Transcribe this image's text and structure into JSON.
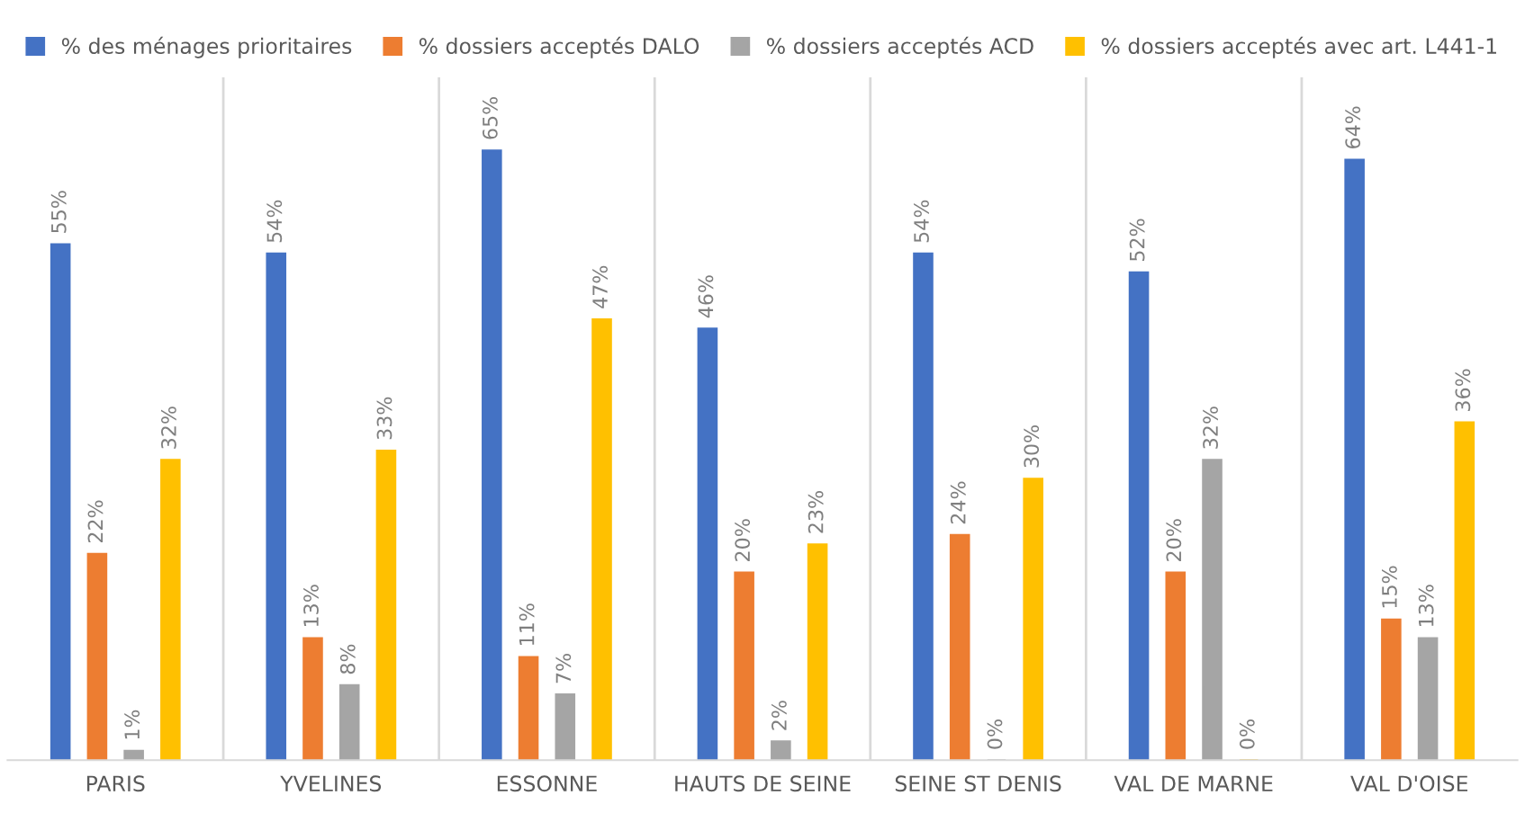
{
  "chart_data": {
    "type": "bar",
    "categories": [
      "PARIS",
      "YVELINES",
      "ESSONNE",
      "HAUTS DE SEINE",
      "SEINE ST DENIS",
      "VAL DE MARNE",
      "VAL D'OISE"
    ],
    "series": [
      {
        "name": "% des ménages prioritaires",
        "color": "#4472c4",
        "values": [
          55,
          54,
          65,
          46,
          54,
          52,
          64
        ],
        "value_labels": [
          "55%",
          "54%",
          "65%",
          "46%",
          "54%",
          "52%",
          "64%"
        ]
      },
      {
        "name": "% dossiers acceptés DALO",
        "color": "#ed7d31",
        "values": [
          22,
          13,
          11,
          20,
          24,
          20,
          15
        ],
        "value_labels": [
          "22%",
          "13%",
          "11%",
          "20%",
          "24%",
          "20%",
          "15%"
        ]
      },
      {
        "name": "% dossiers acceptés ACD",
        "color": "#a5a5a5",
        "values": [
          1,
          8,
          7,
          2,
          0,
          32,
          13
        ],
        "value_labels": [
          "1%",
          "8%",
          "7%",
          "2%",
          "0%",
          "32%",
          "13%"
        ]
      },
      {
        "name": "% dossiers acceptés avec art. L441-1",
        "color": "#ffc000",
        "values": [
          32,
          33,
          47,
          23,
          30,
          0,
          36
        ],
        "value_labels": [
          "32%",
          "33%",
          "47%",
          "23%",
          "30%",
          "0%",
          "36%"
        ]
      }
    ],
    "legend": "top",
    "grid": false
  }
}
